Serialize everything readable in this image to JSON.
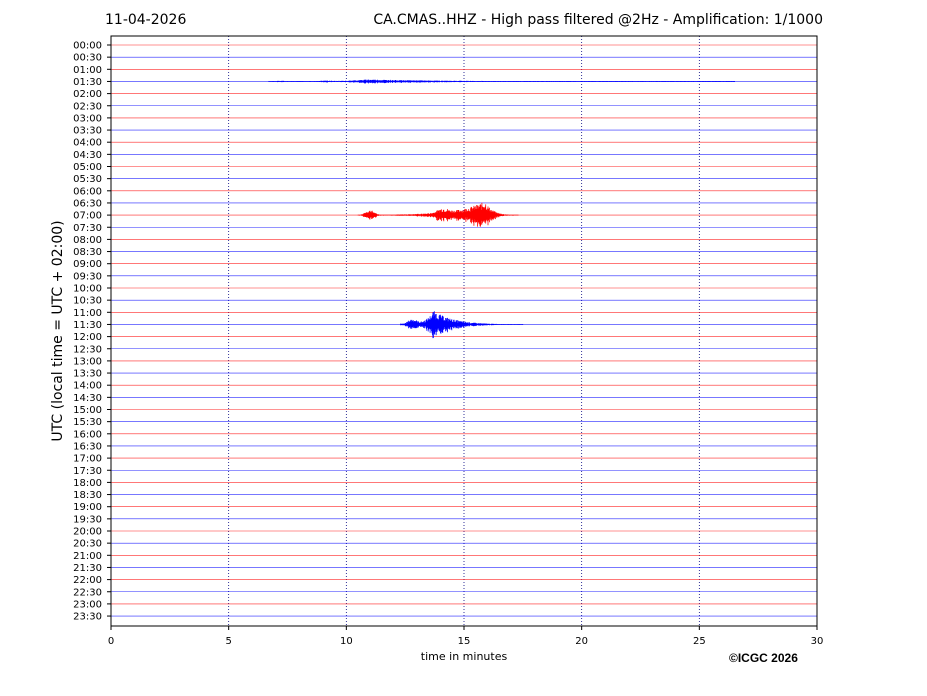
{
  "header": {
    "date": "11-04-2026",
    "title": "CA.CMAS..HHZ - High pass filtered @2Hz - Amplification: 1/1000"
  },
  "footer": {
    "credit": "©ICGC 2026"
  },
  "colors": {
    "trace_a": "#ff0000",
    "trace_b": "#0000ff",
    "grid": "#000080"
  },
  "chart_data": {
    "type": "line",
    "title": "CA.CMAS..HHZ - High pass filtered @2Hz - Amplification: 1/1000",
    "xlabel": "time in minutes",
    "ylabel": "UTC (local time = UTC + 02:00)",
    "xlim": [
      0,
      30
    ],
    "xticks": [
      0,
      5,
      10,
      15,
      20,
      25,
      30
    ],
    "grid": "vertical dotted lines at 5-minute intervals",
    "rows": [
      "00:00",
      "00:30",
      "01:00",
      "01:30",
      "02:00",
      "02:30",
      "03:00",
      "03:30",
      "04:00",
      "04:30",
      "05:00",
      "05:30",
      "06:00",
      "06:30",
      "07:00",
      "07:30",
      "08:00",
      "08:30",
      "09:00",
      "09:30",
      "10:00",
      "10:30",
      "11:00",
      "11:30",
      "12:00",
      "12:30",
      "13:00",
      "13:30",
      "14:00",
      "14:30",
      "15:00",
      "15:30",
      "16:00",
      "16:30",
      "17:00",
      "17:30",
      "18:00",
      "18:30",
      "19:00",
      "19:30",
      "20:00",
      "20:30",
      "21:00",
      "21:30",
      "22:00",
      "22:30",
      "23:00",
      "23:30"
    ],
    "row_color_cycle": [
      "red",
      "blue"
    ],
    "events": [
      {
        "row": "07:00",
        "start_min": 10.5,
        "peak_min": 15.9,
        "end_min": 17.3,
        "peak_amplitude": 1.0,
        "color": "red"
      },
      {
        "row": "11:30",
        "start_min": 12.3,
        "peak_min": 13.7,
        "end_min": 17.5,
        "peak_amplitude": 1.0,
        "color": "blue"
      },
      {
        "row": "01:30",
        "start_min": 6.7,
        "peak_min": 10.9,
        "end_min": 26.5,
        "peak_amplitude": 0.15,
        "color": "blue"
      }
    ]
  }
}
